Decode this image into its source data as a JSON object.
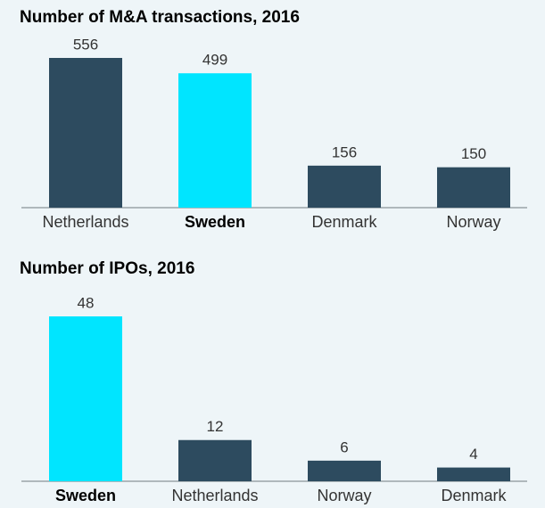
{
  "chart_data": [
    {
      "type": "bar",
      "title": "Number of M&A transactions, 2016",
      "categories": [
        "Netherlands",
        "Sweden",
        "Denmark",
        "Norway"
      ],
      "values": [
        556,
        499,
        156,
        150
      ],
      "color": "#2d4b5f",
      "highlight_color": "#00e5ff",
      "highlight": "Sweden"
    },
    {
      "type": "bar",
      "title": "Number of IPOs, 2016",
      "categories": [
        "Sweden",
        "Netherlands",
        "Norway",
        "Denmark"
      ],
      "values": [
        48,
        12,
        6,
        4
      ],
      "color": "#2d4b5f",
      "highlight_color": "#00e5ff",
      "highlight": "Sweden"
    }
  ]
}
